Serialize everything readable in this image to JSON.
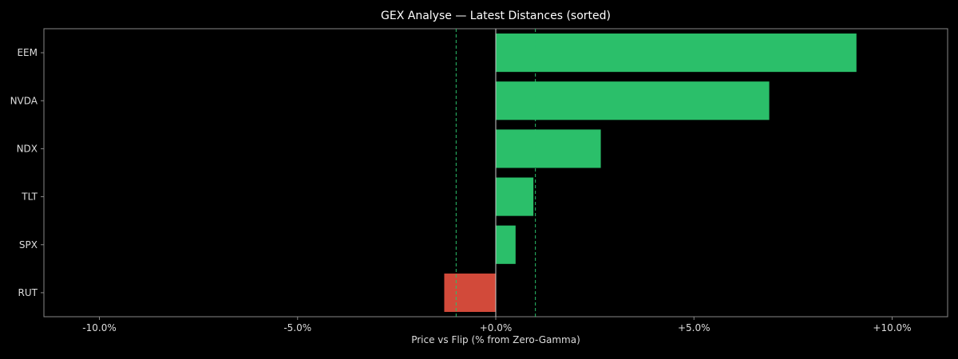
{
  "chart_data": {
    "type": "bar",
    "orientation": "horizontal",
    "title": "GEX Analyse — Latest Distances (sorted)",
    "xlabel": "Price vs Flip (% from Zero-Gamma)",
    "ylabel": "",
    "categories": [
      "EEM",
      "NVDA",
      "NDX",
      "TLT",
      "SPX",
      "RUT"
    ],
    "values": [
      9.1,
      6.9,
      2.65,
      0.95,
      0.5,
      -1.3
    ],
    "xlim": [
      -11.4,
      11.4
    ],
    "xticks": [
      -10,
      -5,
      0,
      5,
      10
    ],
    "xtick_labels": [
      "-10.0%",
      "-5.0%",
      "+0.0%",
      "+5.0%",
      "+10.0%"
    ],
    "reference_lines": [
      {
        "x": 0,
        "style": "solid"
      },
      {
        "x": -1,
        "style": "dashed"
      },
      {
        "x": 1,
        "style": "dashed"
      }
    ],
    "grid": false,
    "legend": "none",
    "colors": {
      "positive": "#2bbf6a",
      "negative": "#d24a3a",
      "background": "#000000",
      "text": "#dddddd",
      "axis": "#888888",
      "zero_line": "#cccccc",
      "band_line": "#2bbf6a"
    }
  }
}
